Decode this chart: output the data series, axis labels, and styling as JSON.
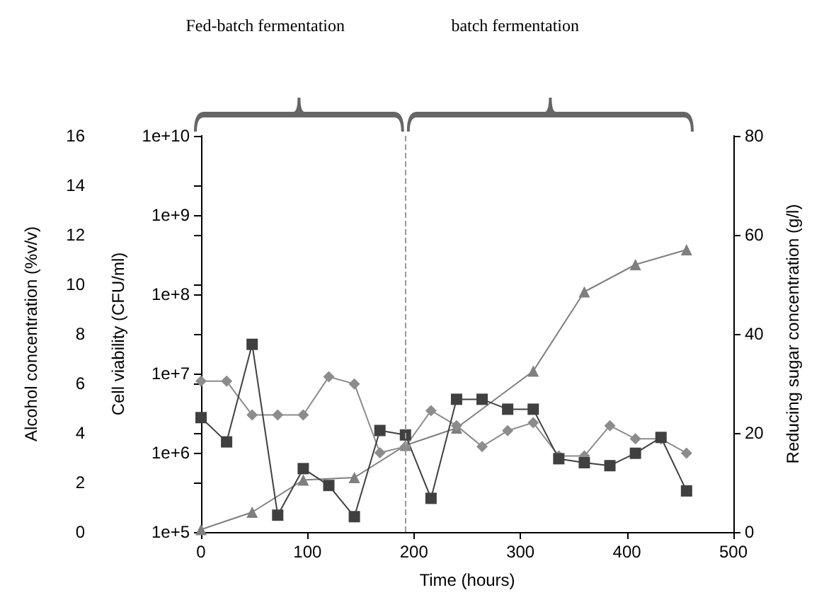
{
  "chart_data": {
    "type": "line",
    "xlabel": "Time (hours)",
    "ylabel": "Alcohol concentration (%v/v)",
    "y2label": "Reducing sugar concentration (g/l)",
    "y3label": "Cell viability (CFU/ml)",
    "xlim": [
      0,
      500
    ],
    "xticks": [
      0,
      100,
      200,
      300,
      400,
      500
    ],
    "ylim": [
      0,
      16
    ],
    "yticks": [
      0,
      2,
      4,
      6,
      8,
      10,
      12,
      14,
      16
    ],
    "y2lim": [
      0,
      80
    ],
    "y2ticks": [
      0,
      20,
      40,
      60,
      80
    ],
    "y3lim": [
      100000,
      10000000000
    ],
    "y3ticks": [
      {
        "value": 100000,
        "label": "1e+5"
      },
      {
        "value": 1000000,
        "label": "1e+6"
      },
      {
        "value": 10000000,
        "label": "1e+7"
      },
      {
        "value": 100000000,
        "label": "1e+8"
      },
      {
        "value": 1000000000,
        "label": "1e+9"
      },
      {
        "value": 10000000000,
        "label": "1e+10"
      }
    ],
    "log": "y3",
    "grid": false,
    "series": [
      {
        "color": "#7f7f7f",
        "marker": "triangle",
        "x": [
          0,
          48,
          96,
          144,
          192,
          240,
          312,
          360,
          408,
          456
        ],
        "values": [
          0.1,
          0.8,
          2.1,
          2.2,
          3.5,
          4.2,
          6.5,
          9.7,
          10.8,
          11.4
        ]
      },
      {
        "color": "#8c8c8c",
        "marker": "diamond",
        "axis": "y3",
        "x": [
          0,
          24,
          48,
          72,
          96,
          120,
          144,
          168,
          192,
          216,
          240,
          264,
          288,
          312,
          336,
          360,
          384,
          408,
          432,
          456
        ],
        "values": [
          8000000,
          8000000,
          3000000,
          3000000,
          3000000,
          9100000,
          7400000,
          1000000,
          1200000,
          3400000,
          2200000,
          1200000,
          1900000,
          2400000,
          910000,
          910000,
          2200000,
          1500000,
          1500000,
          990000
        ]
      },
      {
        "color": "#404040",
        "marker": "square",
        "axis": "y2",
        "x": [
          0,
          24,
          48,
          72,
          96,
          120,
          144,
          168,
          192,
          216,
          240,
          264,
          288,
          312,
          336,
          360,
          384,
          408,
          432,
          456
        ],
        "values": [
          23.1,
          18.2,
          37.9,
          3.4,
          12.8,
          9.4,
          3.1,
          20.5,
          19.6,
          6.8,
          26.8,
          26.8,
          24.8,
          24.8,
          14.8,
          14.0,
          13.4,
          15.9,
          19.1,
          8.3
        ]
      }
    ],
    "ref_lines": [
      {
        "axis": "x",
        "value": 192,
        "label": null,
        "color": "#999999",
        "line_style": "dashed"
      }
    ],
    "annotations": [
      "Fed-batch fermentation",
      "batch fermentation"
    ]
  }
}
